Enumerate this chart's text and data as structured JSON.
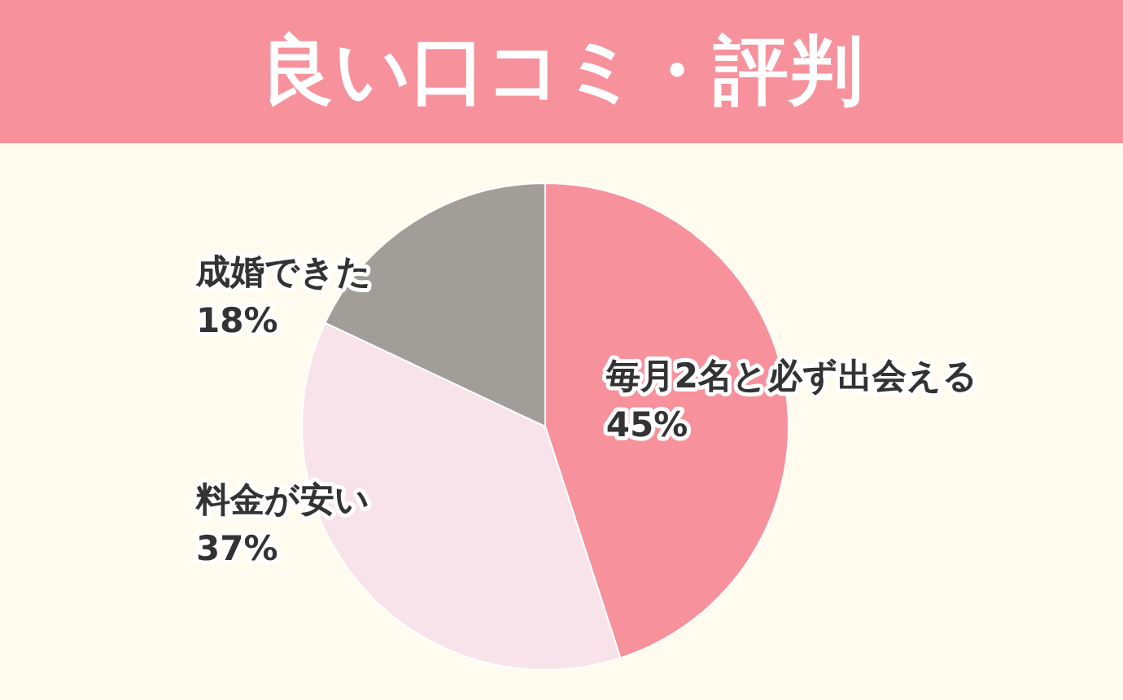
{
  "chart_data": {
    "type": "pie",
    "title": "良い口コミ・評判",
    "categories": [
      "毎月2名と必ず出会える",
      "料金が安い",
      "成婚できた"
    ],
    "values": [
      45,
      37,
      18
    ],
    "colors": [
      "#f7919c",
      "#f8e3ea",
      "#a19d98"
    ],
    "value_labels": [
      "45%",
      "37%",
      "18%"
    ],
    "legend": false
  }
}
